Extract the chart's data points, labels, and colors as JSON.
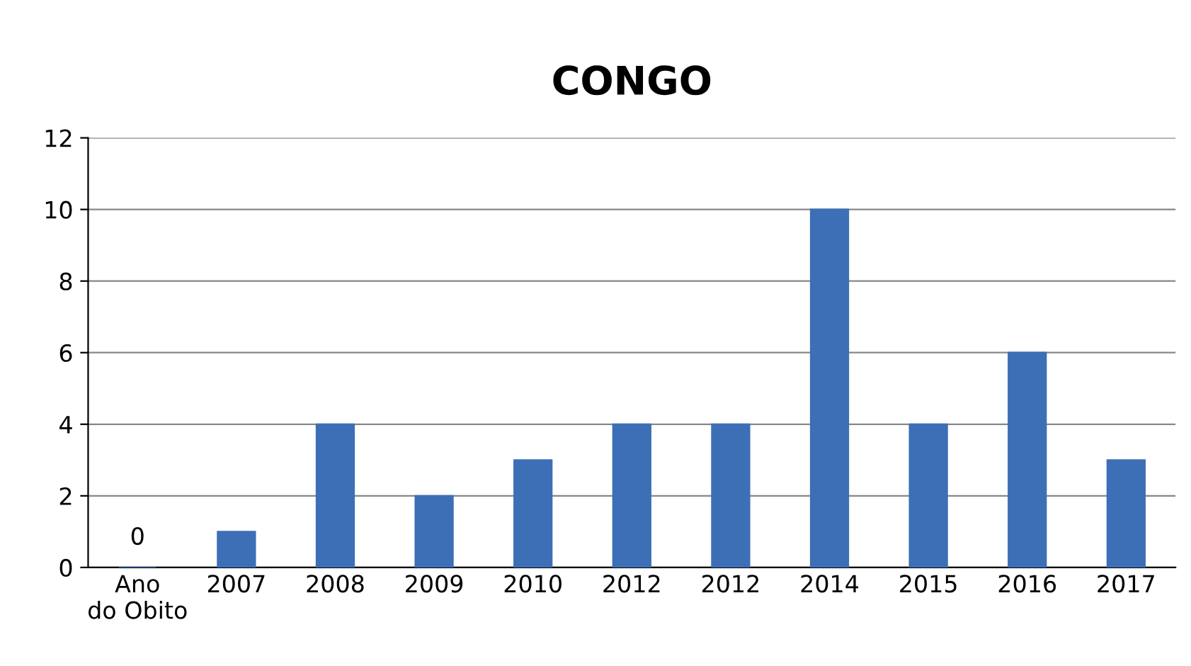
{
  "chart_data": {
    "type": "bar",
    "title": "CONGO",
    "categories": [
      "Ano\ndo Obito",
      "2007",
      "2008",
      "2009",
      "2010",
      "2012",
      "2012",
      "2014",
      "2015",
      "2016",
      "2017"
    ],
    "values": [
      0,
      1,
      4,
      2,
      3,
      4,
      4,
      10,
      4,
      6,
      3
    ],
    "value_labels": [
      "0",
      null,
      null,
      null,
      null,
      null,
      null,
      null,
      null,
      null,
      null
    ],
    "color": "#3d6fb6",
    "ylim": [
      0,
      12
    ],
    "yticks": [
      0,
      2,
      4,
      6,
      8,
      10,
      12
    ],
    "grid": "y"
  }
}
